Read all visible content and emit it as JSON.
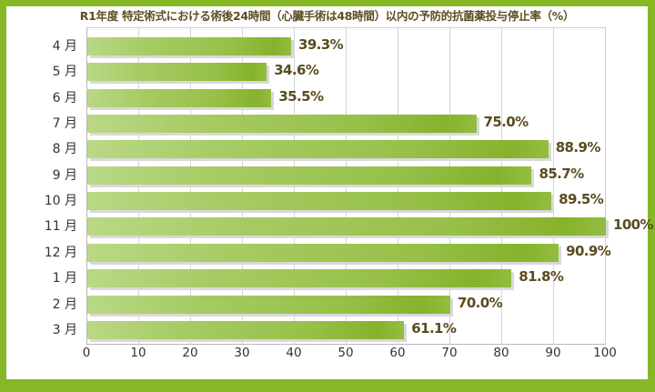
{
  "chart_data": {
    "type": "bar",
    "orientation": "horizontal",
    "title": "R1年度 特定術式における術後24時間（心臓手術は48時間）以内の予防的抗菌薬投与停止率（%）",
    "categories": [
      "4月",
      "5月",
      "6月",
      "7月",
      "8月",
      "9月",
      "10月",
      "11月",
      "12月",
      "1月",
      "2月",
      "3月"
    ],
    "values": [
      39.3,
      34.6,
      35.5,
      75.0,
      88.9,
      85.7,
      89.5,
      100,
      90.9,
      81.8,
      70.0,
      61.1
    ],
    "value_labels": [
      "39.3%",
      "34.6%",
      "35.5%",
      "75.0%",
      "88.9%",
      "85.7%",
      "89.5%",
      "100%",
      "90.9%",
      "81.8%",
      "70.0%",
      "61.1%"
    ],
    "xlabel": "",
    "ylabel": "",
    "xlim": [
      0,
      100
    ],
    "xticks": [
      "0",
      "10",
      "20",
      "30",
      "40",
      "50",
      "60",
      "70",
      "80",
      "90",
      "100"
    ],
    "grid": true,
    "legend": null
  },
  "colors": {
    "frame": "#86b826",
    "bar": "#97c049",
    "value_text": "#5b4b1f",
    "title_text": "#5e4d22"
  }
}
